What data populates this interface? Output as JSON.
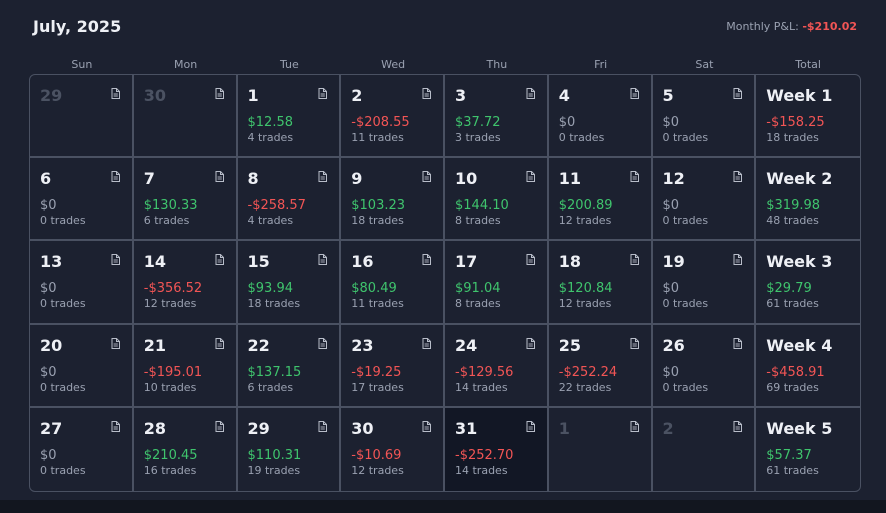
{
  "header": {
    "title": "July, 2025",
    "pnl_label": "Monthly P&L:",
    "pnl_value": "-$210.02"
  },
  "weekdays": [
    "Sun",
    "Mon",
    "Tue",
    "Wed",
    "Thu",
    "Fri",
    "Sat",
    "Total"
  ],
  "colors": {
    "positive": "#3fc46d",
    "negative": "#f25555",
    "neutral": "#9aa1b1",
    "background": "#1c2130",
    "border": "#4a5162"
  },
  "icons": {
    "note": "note-icon"
  },
  "weeks": [
    {
      "days": [
        {
          "day": "29",
          "muted": true
        },
        {
          "day": "30",
          "muted": true
        },
        {
          "day": "1",
          "pl": "$12.58",
          "sign": "pos",
          "trades": "4 trades"
        },
        {
          "day": "2",
          "pl": "-$208.55",
          "sign": "neg",
          "trades": "11 trades"
        },
        {
          "day": "3",
          "pl": "$37.72",
          "sign": "pos",
          "trades": "3 trades"
        },
        {
          "day": "4",
          "pl": "$0",
          "sign": "zero",
          "trades": "0 trades"
        },
        {
          "day": "5",
          "pl": "$0",
          "sign": "zero",
          "trades": "0 trades"
        }
      ],
      "total": {
        "label": "Week 1",
        "pl": "-$158.25",
        "sign": "neg",
        "trades": "18 trades"
      }
    },
    {
      "days": [
        {
          "day": "6",
          "pl": "$0",
          "sign": "zero",
          "trades": "0 trades"
        },
        {
          "day": "7",
          "pl": "$130.33",
          "sign": "pos",
          "trades": "6 trades"
        },
        {
          "day": "8",
          "pl": "-$258.57",
          "sign": "neg",
          "trades": "4 trades"
        },
        {
          "day": "9",
          "pl": "$103.23",
          "sign": "pos",
          "trades": "18 trades"
        },
        {
          "day": "10",
          "pl": "$144.10",
          "sign": "pos",
          "trades": "8 trades"
        },
        {
          "day": "11",
          "pl": "$200.89",
          "sign": "pos",
          "trades": "12 trades"
        },
        {
          "day": "12",
          "pl": "$0",
          "sign": "zero",
          "trades": "0 trades"
        }
      ],
      "total": {
        "label": "Week 2",
        "pl": "$319.98",
        "sign": "pos",
        "trades": "48 trades"
      }
    },
    {
      "days": [
        {
          "day": "13",
          "pl": "$0",
          "sign": "zero",
          "trades": "0 trades"
        },
        {
          "day": "14",
          "pl": "-$356.52",
          "sign": "neg",
          "trades": "12 trades"
        },
        {
          "day": "15",
          "pl": "$93.94",
          "sign": "pos",
          "trades": "18 trades"
        },
        {
          "day": "16",
          "pl": "$80.49",
          "sign": "pos",
          "trades": "11 trades"
        },
        {
          "day": "17",
          "pl": "$91.04",
          "sign": "pos",
          "trades": "8 trades"
        },
        {
          "day": "18",
          "pl": "$120.84",
          "sign": "pos",
          "trades": "12 trades"
        },
        {
          "day": "19",
          "pl": "$0",
          "sign": "zero",
          "trades": "0 trades"
        }
      ],
      "total": {
        "label": "Week 3",
        "pl": "$29.79",
        "sign": "pos",
        "trades": "61 trades"
      }
    },
    {
      "days": [
        {
          "day": "20",
          "pl": "$0",
          "sign": "zero",
          "trades": "0 trades"
        },
        {
          "day": "21",
          "pl": "-$195.01",
          "sign": "neg",
          "trades": "10 trades"
        },
        {
          "day": "22",
          "pl": "$137.15",
          "sign": "pos",
          "trades": "6 trades"
        },
        {
          "day": "23",
          "pl": "-$19.25",
          "sign": "neg",
          "trades": "17 trades"
        },
        {
          "day": "24",
          "pl": "-$129.56",
          "sign": "neg",
          "trades": "14 trades"
        },
        {
          "day": "25",
          "pl": "-$252.24",
          "sign": "neg",
          "trades": "22 trades"
        },
        {
          "day": "26",
          "pl": "$0",
          "sign": "zero",
          "trades": "0 trades"
        }
      ],
      "total": {
        "label": "Week 4",
        "pl": "-$458.91",
        "sign": "neg",
        "trades": "69 trades"
      }
    },
    {
      "days": [
        {
          "day": "27",
          "pl": "$0",
          "sign": "zero",
          "trades": "0 trades"
        },
        {
          "day": "28",
          "pl": "$210.45",
          "sign": "pos",
          "trades": "16 trades"
        },
        {
          "day": "29",
          "pl": "$110.31",
          "sign": "pos",
          "trades": "19 trades"
        },
        {
          "day": "30",
          "pl": "-$10.69",
          "sign": "neg",
          "trades": "12 trades"
        },
        {
          "day": "31",
          "pl": "-$252.70",
          "sign": "neg",
          "trades": "14 trades",
          "today": true
        },
        {
          "day": "1",
          "muted": true
        },
        {
          "day": "2",
          "muted": true
        }
      ],
      "total": {
        "label": "Week 5",
        "pl": "$57.37",
        "sign": "pos",
        "trades": "61 trades"
      }
    }
  ]
}
